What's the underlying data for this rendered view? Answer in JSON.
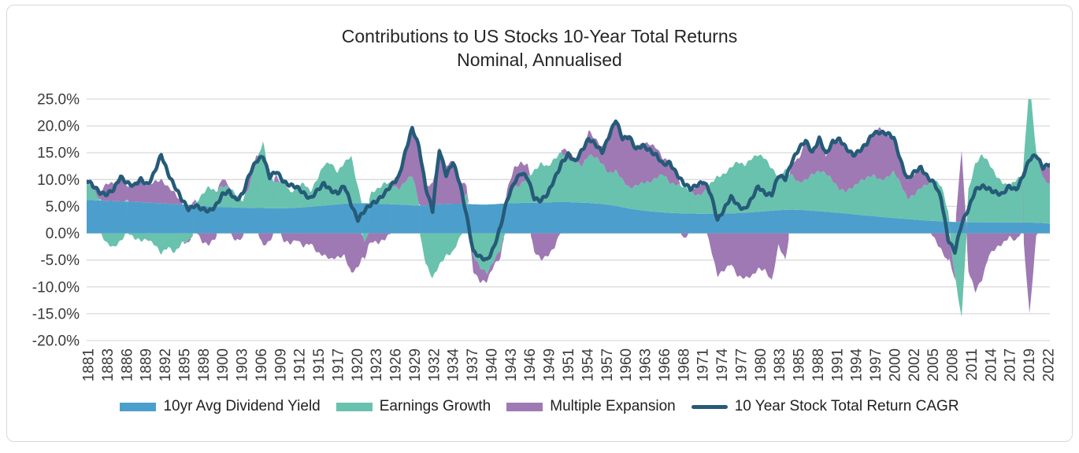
{
  "title": {
    "line1": "Contributions to US Stocks 10-Year Total Returns",
    "line2": "Nominal, Annualised"
  },
  "colors": {
    "dividend": "#4c9fcc",
    "earnings": "#69c2ad",
    "multiple": "#9e79b4",
    "line": "#255b78",
    "gridline": "#d9d9d9",
    "axis_text": "#3a3a3a",
    "border": "#d8d8d8"
  },
  "y_axis": {
    "min": -20,
    "max": 25,
    "step": 5,
    "tick_labels": [
      "25.0%",
      "20.0%",
      "15.0%",
      "10.0%",
      "5.0%",
      "0.0%",
      "-5.0%",
      "-10.0%",
      "-15.0%",
      "-20.0%"
    ]
  },
  "x_axis": {
    "tick_labels": [
      "1881",
      "1883",
      "1886",
      "1889",
      "1892",
      "1895",
      "1898",
      "1900",
      "1903",
      "1906",
      "1909",
      "1912",
      "1915",
      "1917",
      "1920",
      "1923",
      "1926",
      "1929",
      "1932",
      "1934",
      "1937",
      "1940",
      "1943",
      "1946",
      "1949",
      "1951",
      "1954",
      "1957",
      "1960",
      "1963",
      "1966",
      "1968",
      "1971",
      "1974",
      "1977",
      "1980",
      "1983",
      "1985",
      "1988",
      "1991",
      "1994",
      "1997",
      "2000",
      "2002",
      "2005",
      "2008",
      "2011",
      "2014",
      "2017",
      "2019",
      "2022"
    ]
  },
  "legend": [
    {
      "label": "10yr Avg Dividend Yield",
      "color_key": "dividend",
      "type": "area"
    },
    {
      "label": "Earnings Growth",
      "color_key": "earnings",
      "type": "area"
    },
    {
      "label": "Multiple Expansion",
      "color_key": "multiple",
      "type": "area"
    },
    {
      "label": "10 Year Stock Total Return CAGR",
      "color_key": "line",
      "type": "line"
    }
  ],
  "chart_data": {
    "type": "area",
    "subtype": "diverging-stacked-area-with-line-overlay",
    "title": "Contributions to US Stocks 10-Year Total Returns",
    "subtitle": "Nominal, Annualised",
    "xlabel": "",
    "ylabel": "",
    "ylim": [
      -20,
      25
    ],
    "y_unit": "percent",
    "grid": true,
    "legend_position": "bottom",
    "years": [
      1881,
      1882,
      1883,
      1884,
      1885,
      1886,
      1887,
      1888,
      1889,
      1890,
      1891,
      1892,
      1893,
      1894,
      1895,
      1896,
      1897,
      1898,
      1899,
      1900,
      1901,
      1902,
      1903,
      1904,
      1905,
      1906,
      1907,
      1908,
      1909,
      1910,
      1911,
      1912,
      1913,
      1914,
      1915,
      1916,
      1917,
      1918,
      1919,
      1920,
      1921,
      1922,
      1923,
      1924,
      1925,
      1926,
      1927,
      1928,
      1929,
      1930,
      1931,
      1932,
      1933,
      1934,
      1935,
      1936,
      1937,
      1938,
      1939,
      1940,
      1941,
      1942,
      1943,
      1944,
      1945,
      1946,
      1947,
      1948,
      1949,
      1950,
      1951,
      1952,
      1953,
      1954,
      1955,
      1956,
      1957,
      1958,
      1959,
      1960,
      1961,
      1962,
      1963,
      1964,
      1965,
      1966,
      1967,
      1968,
      1969,
      1970,
      1971,
      1972,
      1973,
      1974,
      1975,
      1976,
      1977,
      1978,
      1979,
      1980,
      1981,
      1982,
      1983,
      1984,
      1985,
      1986,
      1987,
      1988,
      1989,
      1990,
      1991,
      1992,
      1993,
      1994,
      1995,
      1996,
      1997,
      1998,
      1999,
      2000,
      2001,
      2002,
      2003,
      2004,
      2005,
      2006,
      2007,
      2008,
      2009,
      2010,
      2011,
      2012,
      2013,
      2014,
      2015,
      2016,
      2017,
      2018,
      2019,
      2020,
      2021,
      2022,
      2023
    ],
    "series": [
      {
        "name": "10yr Avg Dividend Yield",
        "role": "stack",
        "values": [
          6.2,
          6.15,
          6.1,
          6.05,
          6.0,
          5.95,
          5.9,
          5.85,
          5.8,
          5.7,
          5.65,
          5.6,
          5.5,
          5.4,
          5.35,
          5.3,
          5.2,
          5.1,
          5.0,
          4.9,
          4.9,
          4.85,
          4.8,
          4.75,
          4.75,
          4.7,
          4.7,
          4.65,
          4.65,
          4.65,
          4.7,
          4.75,
          4.85,
          4.95,
          5.05,
          5.15,
          5.3,
          5.4,
          5.5,
          5.6,
          5.6,
          5.6,
          5.55,
          5.5,
          5.45,
          5.4,
          5.35,
          5.3,
          5.2,
          5.2,
          5.2,
          5.3,
          5.4,
          5.45,
          5.5,
          5.5,
          5.45,
          5.4,
          5.35,
          5.35,
          5.4,
          5.5,
          5.55,
          5.6,
          5.65,
          5.7,
          5.7,
          5.7,
          5.75,
          5.8,
          5.8,
          5.8,
          5.75,
          5.7,
          5.65,
          5.55,
          5.45,
          5.3,
          5.1,
          4.85,
          4.6,
          4.4,
          4.25,
          4.1,
          4.0,
          3.9,
          3.8,
          3.75,
          3.7,
          3.7,
          3.65,
          3.65,
          3.6,
          3.6,
          3.65,
          3.7,
          3.75,
          3.85,
          3.9,
          4.0,
          4.1,
          4.2,
          4.3,
          4.35,
          4.4,
          4.35,
          4.3,
          4.2,
          4.1,
          4.0,
          3.9,
          3.8,
          3.7,
          3.55,
          3.4,
          3.3,
          3.2,
          3.05,
          2.95,
          2.85,
          2.75,
          2.65,
          2.55,
          2.45,
          2.35,
          2.3,
          2.2,
          2.15,
          2.1,
          2.1,
          2.05,
          2.05,
          2.05,
          2.05,
          2.0,
          2.0,
          2.0,
          2.0,
          2.0,
          2.0,
          1.95,
          1.9,
          1.8
        ]
      },
      {
        "name": "Earnings Growth",
        "role": "stack",
        "values": [
          3.3,
          1.8,
          0.2,
          -1.8,
          -2.8,
          -1.5,
          0.5,
          -1.0,
          -1.5,
          -1.0,
          -2.0,
          -4.0,
          -2.5,
          -3.5,
          -2.0,
          -1.5,
          0.5,
          2.0,
          3.5,
          3.0,
          4.0,
          3.5,
          2.5,
          1.5,
          4.0,
          8.5,
          12.5,
          6.0,
          4.5,
          5.5,
          3.0,
          3.5,
          4.5,
          3.0,
          5.0,
          7.5,
          8.0,
          6.0,
          7.5,
          8.8,
          3.0,
          -2.0,
          2.0,
          3.0,
          4.0,
          3.5,
          3.0,
          4.5,
          5.5,
          0.5,
          -5.5,
          -8.5,
          -6.0,
          -4.0,
          -3.5,
          -1.0,
          2.0,
          -4.0,
          -6.5,
          -7.5,
          -5.0,
          -3.0,
          1.0,
          3.0,
          3.5,
          4.5,
          6.0,
          7.5,
          6.5,
          8.0,
          9.5,
          8.0,
          7.5,
          7.0,
          9.0,
          8.5,
          7.5,
          6.0,
          6.5,
          5.0,
          4.0,
          4.5,
          5.0,
          5.5,
          6.5,
          7.0,
          5.5,
          5.5,
          5.0,
          4.0,
          3.5,
          4.0,
          5.5,
          7.0,
          7.5,
          8.5,
          9.5,
          9.0,
          10.0,
          10.5,
          10.0,
          8.0,
          6.0,
          7.5,
          6.5,
          5.0,
          5.5,
          7.0,
          7.5,
          7.0,
          6.0,
          4.5,
          4.0,
          5.0,
          6.5,
          7.0,
          7.5,
          7.0,
          7.5,
          8.5,
          6.5,
          4.0,
          4.5,
          6.0,
          7.0,
          7.5,
          6.5,
          2.0,
          -8.0,
          -16.0,
          6.0,
          11.0,
          12.5,
          11.0,
          9.0,
          7.5,
          6.5,
          8.0,
          9.0,
          26.0,
          13.0,
          8.5,
          7.3
        ]
      },
      {
        "name": "Multiple Expansion",
        "role": "stack",
        "values": [
          0.3,
          0.7,
          1.4,
          3.2,
          3.5,
          4.5,
          2.5,
          3.5,
          4.5,
          3.0,
          4.0,
          4.5,
          3.0,
          2.0,
          0.5,
          -0.5,
          0.5,
          -1.5,
          -2.0,
          -1.0,
          1.5,
          0.5,
          -1.5,
          -1.0,
          2.5,
          1.0,
          -2.5,
          -1.5,
          1.5,
          -1.5,
          -2.0,
          -1.0,
          -2.5,
          -2.0,
          -3.5,
          -4.0,
          -5.0,
          -4.5,
          -4.0,
          -7.5,
          -6.5,
          -3.0,
          -1.5,
          -2.0,
          -1.0,
          0.5,
          2.5,
          6.0,
          8.0,
          10.5,
          3.5,
          4.0,
          10.6,
          7.0,
          8.0,
          5.0,
          1.5,
          -3.0,
          -2.5,
          -1.5,
          -1.0,
          -1.5,
          1.5,
          3.5,
          4.0,
          2.5,
          -3.5,
          -5.0,
          -4.0,
          -2.5,
          0.5,
          1.5,
          0.5,
          2.5,
          4.5,
          3.5,
          3.0,
          7.5,
          9.0,
          8.0,
          9.5,
          7.0,
          7.5,
          7.0,
          5.5,
          3.0,
          4.0,
          1.5,
          -1.0,
          0.5,
          1.5,
          2.0,
          -2.5,
          -8.0,
          -7.0,
          -5.5,
          -8.0,
          -8.5,
          -8.0,
          -6.5,
          -7.0,
          -9.0,
          -2.0,
          -5.0,
          2.5,
          4.5,
          7.5,
          4.0,
          6.5,
          3.5,
          7.0,
          9.0,
          8.0,
          6.0,
          5.5,
          6.5,
          8.0,
          9.5,
          8.0,
          6.5,
          4.5,
          3.5,
          4.0,
          3.5,
          1.0,
          -1.0,
          -3.0,
          -5.5,
          -1.0,
          13.5,
          -7.0,
          -11.0,
          -8.5,
          -4.0,
          -3.0,
          -2.0,
          -0.5,
          -1.5,
          0.5,
          -15.0,
          -0.5,
          1.8,
          3.6
        ]
      },
      {
        "name": "10 Year Stock Total Return CAGR",
        "role": "line",
        "values": [
          9.8,
          8.7,
          7.7,
          7.3,
          8.0,
          10.6,
          9.5,
          8.7,
          10.0,
          9.2,
          11.3,
          14.5,
          11.3,
          8.8,
          6.2,
          4.5,
          5.4,
          4.4,
          4.0,
          5.2,
          7.2,
          7.6,
          6.3,
          7.4,
          10.8,
          13.4,
          14.6,
          10.4,
          11.4,
          9.8,
          9.0,
          8.4,
          7.5,
          6.6,
          7.8,
          9.2,
          8.2,
          7.4,
          8.7,
          5.5,
          2.6,
          4.1,
          5.5,
          6.4,
          7.4,
          9.0,
          10.6,
          15.2,
          19.4,
          16.2,
          8.6,
          4.0,
          15.6,
          11.0,
          13.2,
          9.2,
          3.6,
          -3.4,
          -4.6,
          -5.0,
          -2.6,
          1.0,
          6.2,
          9.6,
          11.2,
          10.2,
          6.6,
          6.2,
          7.2,
          10.2,
          13.2,
          14.6,
          13.2,
          15.6,
          17.6,
          16.4,
          15.2,
          18.2,
          21.0,
          17.6,
          18.2,
          15.6,
          16.2,
          15.6,
          14.6,
          12.6,
          13.2,
          11.2,
          9.2,
          8.2,
          9.2,
          9.6,
          7.2,
          2.6,
          4.6,
          6.6,
          5.2,
          4.6,
          6.2,
          8.6,
          7.6,
          7.2,
          10.6,
          10.2,
          13.6,
          15.6,
          17.2,
          15.2,
          17.6,
          14.6,
          17.2,
          17.6,
          15.6,
          14.6,
          15.6,
          16.6,
          18.6,
          19.0,
          18.6,
          17.6,
          13.6,
          10.2,
          11.2,
          12.2,
          10.6,
          9.2,
          6.2,
          -1.0,
          -3.4,
          1.6,
          4.6,
          8.2,
          8.6,
          8.2,
          7.8,
          7.2,
          8.6,
          8.2,
          10.6,
          13.6,
          14.6,
          12.4,
          12.8
        ]
      }
    ]
  }
}
